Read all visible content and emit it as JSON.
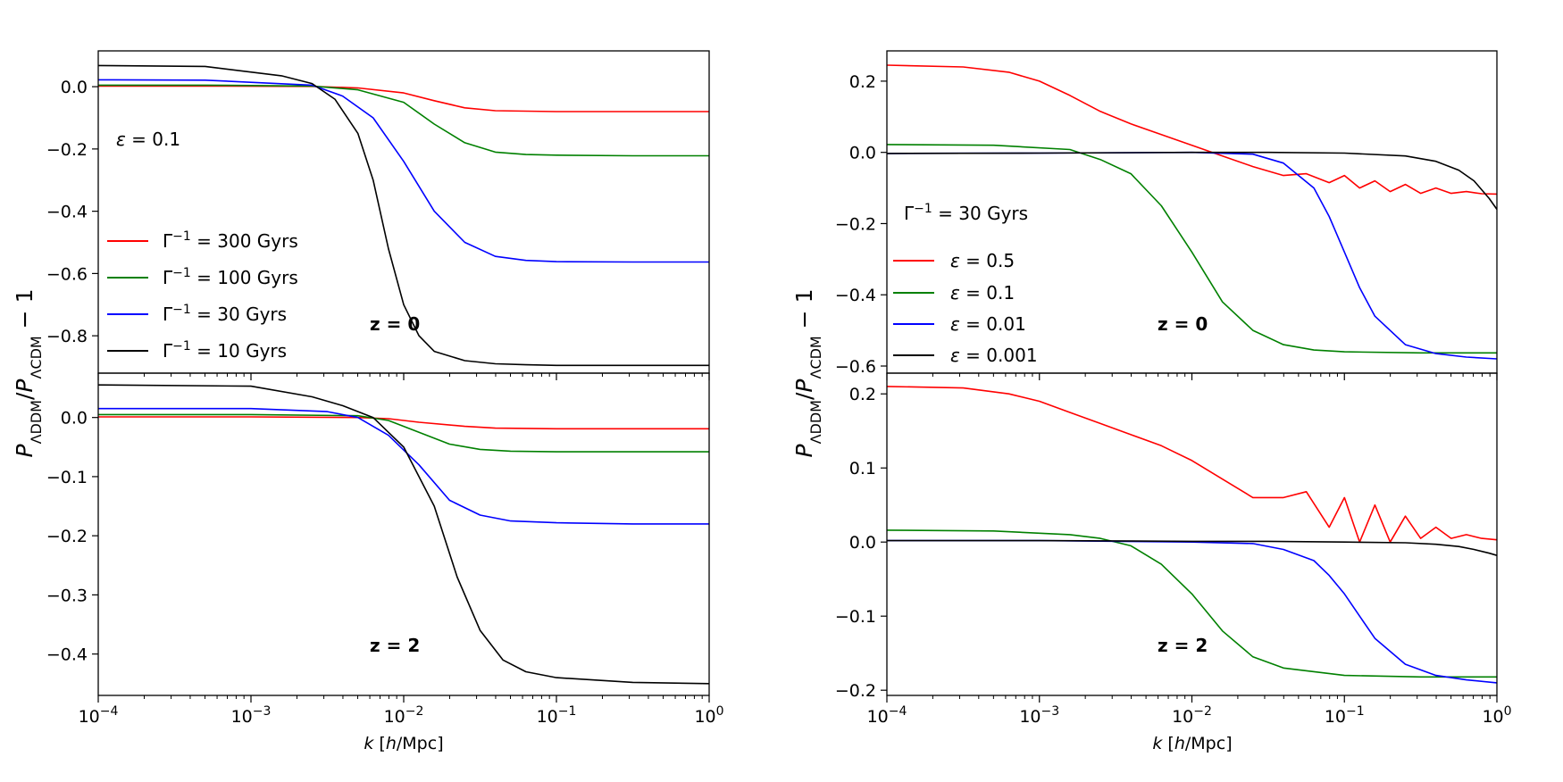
{
  "chart_data": [
    {
      "type": "line",
      "panel": "left",
      "xlabel": "k  [h/Mpc]",
      "xscale": "log",
      "xlim": [
        0.0001,
        1
      ],
      "x_ticks": [
        {
          "base": "10",
          "exp": "−4"
        },
        {
          "base": "10",
          "exp": "−3"
        },
        {
          "base": "10",
          "exp": "−2"
        },
        {
          "base": "10",
          "exp": "−1"
        },
        {
          "base": "10",
          "exp": "0"
        }
      ],
      "ylabel": "P_ΛDDM/P_ΛCDM − 1",
      "annotation": "ε = 0.1",
      "legend": [
        {
          "label": "Γ⁻¹ = 300 Gyrs",
          "color": "#ff0000"
        },
        {
          "label": "Γ⁻¹ = 100 Gyrs",
          "color": "#008000"
        },
        {
          "label": "Γ⁻¹ = 30 Gyrs",
          "color": "#0000ff"
        },
        {
          "label": "Γ⁻¹ = 10 Gyrs",
          "color": "#000000"
        }
      ],
      "subplots": [
        {
          "redshift_label": "z = 0",
          "ylim": [
            -0.92,
            0.115
          ],
          "y_ticks": [
            "0.0",
            "−0.2",
            "−0.4",
            "−0.6",
            "−0.8"
          ],
          "y_tick_values": [
            0.0,
            -0.2,
            -0.4,
            -0.6,
            -0.8
          ],
          "series": [
            {
              "name": "Γ⁻¹ = 300 Gyrs",
              "color": "#ff0000",
              "x": [
                -4,
                -3.3,
                -2.6,
                -2.3,
                -2,
                -1.8,
                -1.6,
                -1.4,
                -1,
                -0.5,
                0
              ],
              "y": [
                0.002,
                0.002,
                0.001,
                -0.004,
                -0.02,
                -0.045,
                -0.068,
                -0.077,
                -0.08,
                -0.08,
                -0.08
              ]
            },
            {
              "name": "Γ⁻¹ = 100 Gyrs",
              "color": "#008000",
              "x": [
                -4,
                -3.3,
                -2.6,
                -2.3,
                -2,
                -1.8,
                -1.6,
                -1.4,
                -1.2,
                -1,
                -0.5,
                0
              ],
              "y": [
                0.005,
                0.005,
                0.002,
                -0.01,
                -0.05,
                -0.12,
                -0.18,
                -0.21,
                -0.218,
                -0.22,
                -0.222,
                -0.222
              ]
            },
            {
              "name": "Γ⁻¹ = 30 Gyrs",
              "color": "#0000ff",
              "x": [
                -4,
                -3.3,
                -2.6,
                -2.4,
                -2.2,
                -2,
                -1.8,
                -1.6,
                -1.4,
                -1.2,
                -1,
                -0.5,
                0
              ],
              "y": [
                0.022,
                0.021,
                0.005,
                -0.03,
                -0.1,
                -0.24,
                -0.4,
                -0.5,
                -0.545,
                -0.558,
                -0.562,
                -0.563,
                -0.563
              ]
            },
            {
              "name": "Γ⁻¹ = 10 Gyrs",
              "color": "#000000",
              "x": [
                -4,
                -3.3,
                -2.8,
                -2.6,
                -2.45,
                -2.3,
                -2.2,
                -2.1,
                -2,
                -1.9,
                -1.8,
                -1.6,
                -1.4,
                -1.2,
                -1,
                -0.5,
                0
              ],
              "y": [
                0.068,
                0.065,
                0.035,
                0.01,
                -0.04,
                -0.15,
                -0.3,
                -0.52,
                -0.7,
                -0.8,
                -0.85,
                -0.88,
                -0.89,
                -0.893,
                -0.895,
                -0.895,
                -0.895
              ]
            }
          ]
        },
        {
          "redshift_label": "z = 2",
          "ylim": [
            -0.47,
            0.075
          ],
          "y_ticks": [
            "0.0",
            "−0.1",
            "−0.2",
            "−0.3",
            "−0.4"
          ],
          "y_tick_values": [
            0.0,
            -0.1,
            -0.2,
            -0.3,
            -0.4
          ],
          "series": [
            {
              "name": "Γ⁻¹ = 300 Gyrs",
              "color": "#ff0000",
              "x": [
                -4,
                -3,
                -2.3,
                -2.1,
                -1.9,
                -1.6,
                -1.4,
                -1,
                -0.5,
                0
              ],
              "y": [
                0.001,
                0.001,
                0.0,
                -0.002,
                -0.008,
                -0.015,
                -0.018,
                -0.019,
                -0.019,
                -0.019
              ]
            },
            {
              "name": "Γ⁻¹ = 100 Gyrs",
              "color": "#008000",
              "x": [
                -4,
                -3,
                -2.3,
                -2.1,
                -1.9,
                -1.7,
                -1.5,
                -1.3,
                -1,
                -0.5,
                0
              ],
              "y": [
                0.005,
                0.005,
                0.003,
                -0.005,
                -0.025,
                -0.045,
                -0.054,
                -0.057,
                -0.058,
                -0.058,
                -0.058
              ]
            },
            {
              "name": "Γ⁻¹ = 30 Gyrs",
              "color": "#0000ff",
              "x": [
                -4,
                -3,
                -2.5,
                -2.3,
                -2.1,
                -1.9,
                -1.7,
                -1.5,
                -1.3,
                -1,
                -0.5,
                0
              ],
              "y": [
                0.015,
                0.015,
                0.01,
                0.0,
                -0.03,
                -0.08,
                -0.14,
                -0.165,
                -0.175,
                -0.178,
                -0.18,
                -0.18
              ]
            },
            {
              "name": "Γ⁻¹ = 10 Gyrs",
              "color": "#000000",
              "x": [
                -4,
                -3,
                -2.6,
                -2.4,
                -2.2,
                -2.0,
                -1.8,
                -1.65,
                -1.5,
                -1.35,
                -1.2,
                -1.0,
                -0.5,
                0
              ],
              "y": [
                0.055,
                0.053,
                0.035,
                0.02,
                0.0,
                -0.05,
                -0.15,
                -0.27,
                -0.36,
                -0.41,
                -0.43,
                -0.44,
                -0.448,
                -0.45
              ]
            }
          ]
        }
      ]
    },
    {
      "type": "line",
      "panel": "right",
      "xlabel": "k  [h/Mpc]",
      "xscale": "log",
      "xlim": [
        0.0001,
        1
      ],
      "x_ticks": [
        {
          "base": "10",
          "exp": "−4"
        },
        {
          "base": "10",
          "exp": "−3"
        },
        {
          "base": "10",
          "exp": "−2"
        },
        {
          "base": "10",
          "exp": "−1"
        },
        {
          "base": "10",
          "exp": "0"
        }
      ],
      "ylabel": "P_ΛDDM/P_ΛCDM − 1",
      "annotation": "Γ⁻¹ = 30 Gyrs",
      "legend": [
        {
          "label": "ε = 0.5",
          "color": "#ff0000"
        },
        {
          "label": "ε = 0.1",
          "color": "#008000"
        },
        {
          "label": "ε = 0.01",
          "color": "#0000ff"
        },
        {
          "label": "ε = 0.001",
          "color": "#000000"
        }
      ],
      "subplots": [
        {
          "redshift_label": "z = 0",
          "ylim": [
            -0.62,
            0.285
          ],
          "y_ticks": [
            "0.2",
            "0.0",
            "−0.2",
            "−0.4",
            "−0.6"
          ],
          "y_tick_values": [
            0.2,
            0.0,
            -0.2,
            -0.4,
            -0.6
          ],
          "series": [
            {
              "name": "ε = 0.5",
              "color": "#ff0000",
              "x": [
                -4,
                -3.5,
                -3.2,
                -3.0,
                -2.8,
                -2.6,
                -2.4,
                -2.2,
                -2.0,
                -1.8,
                -1.6,
                -1.4,
                -1.25,
                -1.1,
                -1.0,
                -0.9,
                -0.8,
                -0.7,
                -0.6,
                -0.5,
                -0.4,
                -0.3,
                -0.2,
                -0.1,
                0
              ],
              "y": [
                0.245,
                0.24,
                0.225,
                0.2,
                0.16,
                0.115,
                0.08,
                0.05,
                0.02,
                -0.01,
                -0.04,
                -0.065,
                -0.06,
                -0.085,
                -0.065,
                -0.1,
                -0.08,
                -0.11,
                -0.09,
                -0.115,
                -0.1,
                -0.115,
                -0.11,
                -0.116,
                -0.117
              ]
            },
            {
              "name": "ε = 0.1",
              "color": "#008000",
              "x": [
                -4,
                -3.3,
                -2.8,
                -2.6,
                -2.4,
                -2.2,
                -2.0,
                -1.8,
                -1.6,
                -1.4,
                -1.2,
                -1.0,
                -0.5,
                0
              ],
              "y": [
                0.022,
                0.02,
                0.008,
                -0.02,
                -0.06,
                -0.15,
                -0.28,
                -0.42,
                -0.5,
                -0.54,
                -0.555,
                -0.56,
                -0.563,
                -0.563
              ]
            },
            {
              "name": "ε = 0.01",
              "color": "#0000ff",
              "x": [
                -4,
                -3,
                -2,
                -1.6,
                -1.4,
                -1.2,
                -1.1,
                -1.0,
                -0.9,
                -0.8,
                -0.6,
                -0.4,
                -0.2,
                0
              ],
              "y": [
                -0.003,
                -0.002,
                0.0,
                -0.005,
                -0.03,
                -0.1,
                -0.18,
                -0.28,
                -0.38,
                -0.46,
                -0.54,
                -0.565,
                -0.575,
                -0.58
              ]
            },
            {
              "name": "ε = 0.001",
              "color": "#000000",
              "x": [
                -4,
                -3,
                -2,
                -1.5,
                -1,
                -0.6,
                -0.4,
                -0.25,
                -0.15,
                -0.05,
                0
              ],
              "y": [
                -0.003,
                -0.002,
                0.0,
                0.0,
                -0.002,
                -0.01,
                -0.025,
                -0.05,
                -0.08,
                -0.13,
                -0.16
              ]
            }
          ]
        },
        {
          "redshift_label": "z = 2",
          "ylim": [
            -0.207,
            0.228
          ],
          "y_ticks": [
            "0.2",
            "0.1",
            "0.0",
            "−0.1",
            "−0.2"
          ],
          "y_tick_values": [
            0.2,
            0.1,
            0.0,
            -0.1,
            -0.2
          ],
          "series": [
            {
              "name": "ε = 0.5",
              "color": "#ff0000",
              "x": [
                -4,
                -3.5,
                -3.2,
                -3.0,
                -2.8,
                -2.6,
                -2.4,
                -2.2,
                -2.0,
                -1.8,
                -1.6,
                -1.4,
                -1.25,
                -1.1,
                -1.0,
                -0.9,
                -0.8,
                -0.7,
                -0.6,
                -0.5,
                -0.4,
                -0.3,
                -0.2,
                -0.1,
                0
              ],
              "y": [
                0.21,
                0.208,
                0.2,
                0.19,
                0.175,
                0.16,
                0.145,
                0.13,
                0.11,
                0.085,
                0.06,
                0.06,
                0.068,
                0.02,
                0.06,
                0.0,
                0.05,
                0.0,
                0.035,
                0.005,
                0.02,
                0.005,
                0.01,
                0.005,
                0.003
              ]
            },
            {
              "name": "ε = 0.1",
              "color": "#008000",
              "x": [
                -4,
                -3.3,
                -2.8,
                -2.6,
                -2.4,
                -2.2,
                -2.0,
                -1.8,
                -1.6,
                -1.4,
                -1.2,
                -1.0,
                -0.5,
                0
              ],
              "y": [
                0.016,
                0.015,
                0.01,
                0.005,
                -0.005,
                -0.03,
                -0.07,
                -0.12,
                -0.155,
                -0.17,
                -0.175,
                -0.18,
                -0.182,
                -0.182
              ]
            },
            {
              "name": "ε = 0.01",
              "color": "#0000ff",
              "x": [
                -4,
                -3,
                -2,
                -1.6,
                -1.4,
                -1.2,
                -1.1,
                -1.0,
                -0.9,
                -0.8,
                -0.6,
                -0.4,
                -0.2,
                0
              ],
              "y": [
                0.002,
                0.002,
                0.0,
                -0.002,
                -0.01,
                -0.025,
                -0.045,
                -0.07,
                -0.1,
                -0.13,
                -0.165,
                -0.18,
                -0.186,
                -0.19
              ]
            },
            {
              "name": "ε = 0.001",
              "color": "#000000",
              "x": [
                -4,
                -3,
                -2,
                -1.5,
                -1,
                -0.6,
                -0.4,
                -0.25,
                -0.15,
                -0.05,
                0
              ],
              "y": [
                0.002,
                0.002,
                0.001,
                0.001,
                0.0,
                -0.001,
                -0.003,
                -0.006,
                -0.01,
                -0.015,
                -0.018
              ]
            }
          ]
        }
      ]
    }
  ]
}
